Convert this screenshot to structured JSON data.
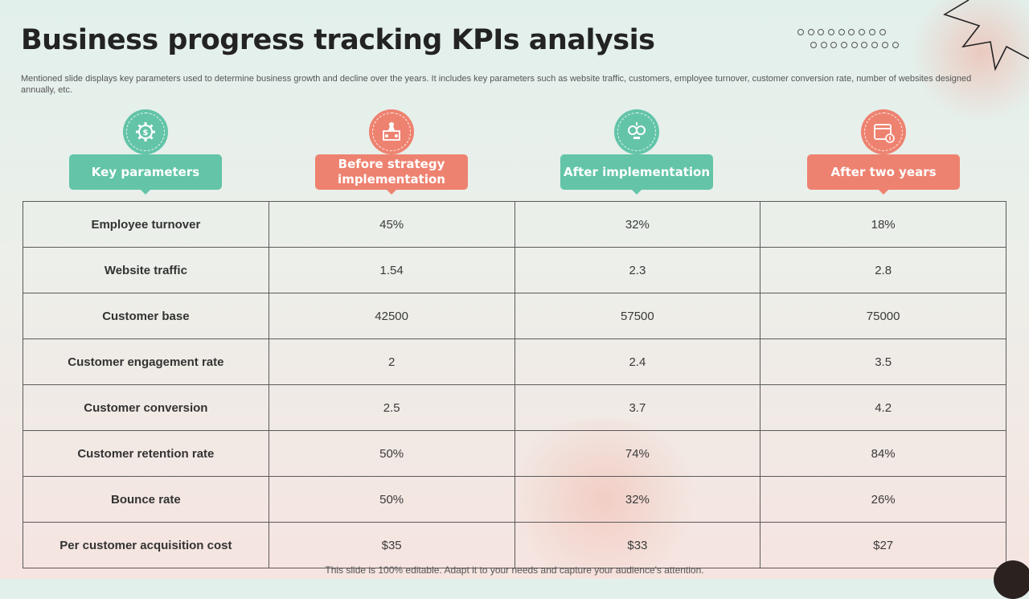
{
  "title": "Business progress tracking KPIs analysis",
  "subtitle": "Mentioned slide displays key parameters used to determine business growth and decline over the years. It includes key parameters such as website traffic, customers, employee turnover, customer conversion rate, number of websites designed annually, etc.",
  "colors": {
    "teal": "#63c4a8",
    "coral": "#ee8270"
  },
  "columns": [
    {
      "label": "Key parameters",
      "icon": "gear-dollar-icon",
      "color": "teal"
    },
    {
      "label": "Before strategy implementation",
      "icon": "strategy-chess-icon",
      "color": "coral"
    },
    {
      "label": "After implementation",
      "icon": "gears-bulb-icon",
      "color": "teal"
    },
    {
      "label": "After two years",
      "icon": "calendar-years-icon",
      "color": "coral"
    }
  ],
  "rows": [
    {
      "parameter": "Employee turnover",
      "before": "45%",
      "after": "32%",
      "two_years": "18%"
    },
    {
      "parameter": "Website traffic",
      "before": "1.54",
      "after": "2.3",
      "two_years": "2.8"
    },
    {
      "parameter": "Customer base",
      "before": "42500",
      "after": "57500",
      "two_years": "75000"
    },
    {
      "parameter": "Customer engagement rate",
      "before": "2",
      "after": "2.4",
      "two_years": "3.5"
    },
    {
      "parameter": "Customer conversion",
      "before": "2.5",
      "after": "3.7",
      "two_years": "4.2"
    },
    {
      "parameter": "Customer retention rate",
      "before": "50%",
      "after": "74%",
      "two_years": "84%"
    },
    {
      "parameter": "Bounce rate",
      "before": "50%",
      "after": "32%",
      "two_years": "26%"
    },
    {
      "parameter": "Per customer acquisition cost",
      "before": "$35",
      "after": "$33",
      "two_years": "$27"
    }
  ],
  "footer": "This slide is 100% editable. Adapt it to your needs and capture your audience's attention."
}
